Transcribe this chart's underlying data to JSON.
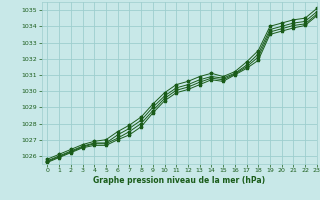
{
  "xlabel": "Graphe pression niveau de la mer (hPa)",
  "xlim": [
    -0.5,
    23
  ],
  "ylim": [
    1025.5,
    1035.5
  ],
  "yticks": [
    1026,
    1027,
    1028,
    1029,
    1030,
    1031,
    1032,
    1033,
    1034,
    1035
  ],
  "xticks": [
    0,
    1,
    2,
    3,
    4,
    5,
    6,
    7,
    8,
    9,
    10,
    11,
    12,
    13,
    14,
    15,
    16,
    17,
    18,
    19,
    20,
    21,
    22,
    23
  ],
  "background_color": "#c8e8e8",
  "grid_color": "#9ecece",
  "line_color": "#1a5c1a",
  "series": [
    [
      1025.8,
      1026.1,
      1026.4,
      1026.7,
      1026.9,
      1027.0,
      1027.5,
      1027.9,
      1028.4,
      1029.2,
      1029.9,
      1030.4,
      1030.6,
      1030.9,
      1031.1,
      1030.9,
      1031.2,
      1031.8,
      1032.5,
      1034.0,
      1034.2,
      1034.4,
      1034.5,
      1035.1
    ],
    [
      1025.7,
      1026.0,
      1026.3,
      1026.6,
      1026.8,
      1026.8,
      1027.3,
      1027.7,
      1028.2,
      1029.0,
      1029.7,
      1030.2,
      1030.4,
      1030.7,
      1030.9,
      1030.8,
      1031.1,
      1031.6,
      1032.3,
      1033.8,
      1034.0,
      1034.2,
      1034.3,
      1034.9
    ],
    [
      1025.65,
      1025.95,
      1026.25,
      1026.55,
      1026.75,
      1026.75,
      1027.1,
      1027.5,
      1028.0,
      1028.8,
      1029.55,
      1030.05,
      1030.25,
      1030.55,
      1030.8,
      1030.7,
      1031.05,
      1031.5,
      1032.1,
      1033.65,
      1033.85,
      1034.05,
      1034.15,
      1034.75
    ],
    [
      1025.6,
      1025.9,
      1026.2,
      1026.5,
      1026.65,
      1026.65,
      1027.0,
      1027.3,
      1027.8,
      1028.65,
      1029.4,
      1029.9,
      1030.1,
      1030.4,
      1030.7,
      1030.6,
      1031.0,
      1031.4,
      1031.9,
      1033.5,
      1033.7,
      1033.9,
      1034.05,
      1034.65
    ]
  ]
}
